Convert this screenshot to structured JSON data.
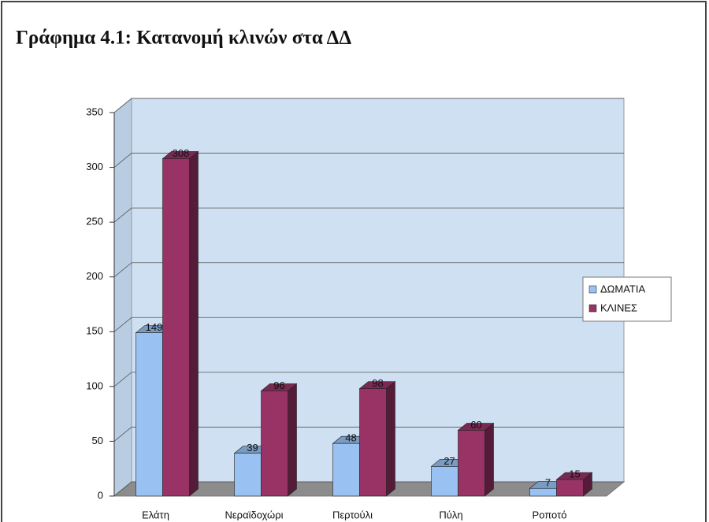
{
  "chart_data": {
    "type": "bar3d",
    "title": "Γράφημα 4.1: Κατανομή κλινών στα ΔΔ",
    "categories": [
      "Ελάτη",
      "Νεραϊδοχώρι",
      "Περτούλι",
      "Πύλη",
      "Ροποτό"
    ],
    "series": [
      {
        "name": "ΔΩΜΑΤΙΑ",
        "color": "#99c2f2",
        "values": [
          149,
          39,
          48,
          27,
          7
        ]
      },
      {
        "name": "ΚΛΙΝΕΣ",
        "color": "#993366",
        "values": [
          308,
          96,
          98,
          60,
          15
        ]
      }
    ],
    "ylim": [
      0,
      350
    ],
    "yticks": [
      0,
      50,
      100,
      150,
      200,
      250,
      300,
      350
    ],
    "grid": true,
    "legend": "right"
  }
}
